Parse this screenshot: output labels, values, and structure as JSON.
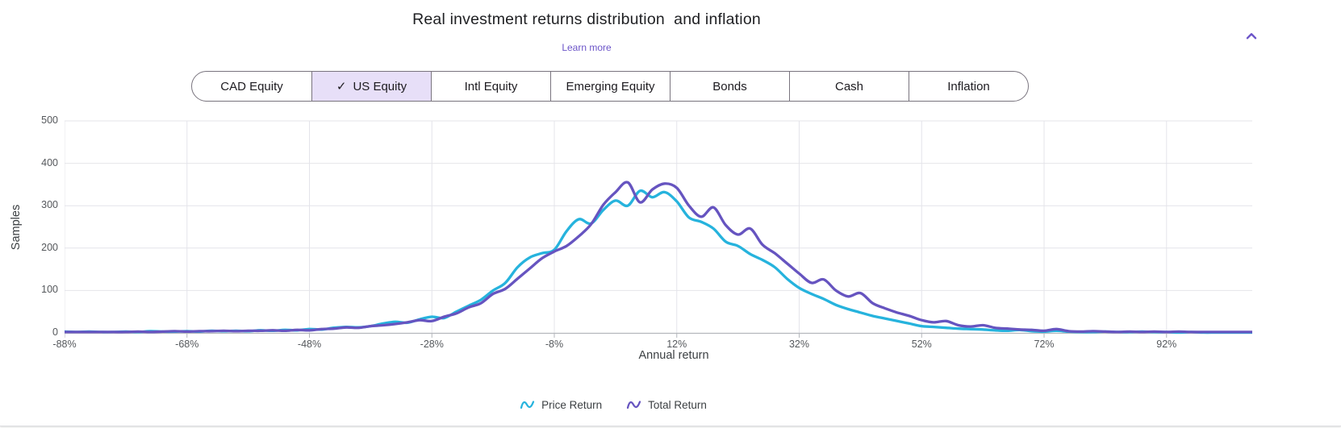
{
  "header": {
    "title": "Real investment returns distribution  and inflation",
    "learn_more": "Learn more"
  },
  "icons": {
    "collapse": "chevron-up-icon",
    "selected_check": "check-icon",
    "legend_marker": "wave-icon"
  },
  "colors": {
    "accent_purple": "#6b54c8",
    "selected_segment_bg": "#e7dff8",
    "segment_border": "#79747e",
    "grid": "#e4e4ea",
    "axis": "#b4b7bc",
    "price_return": "#26b3dd",
    "total_return": "#6654c0"
  },
  "segmented_control": {
    "check_glyph": "✓",
    "options": [
      {
        "label": "CAD Equity",
        "selected": false
      },
      {
        "label": "US Equity",
        "selected": true
      },
      {
        "label": "Intl Equity",
        "selected": false
      },
      {
        "label": "Emerging Equity",
        "selected": false
      },
      {
        "label": "Bonds",
        "selected": false
      },
      {
        "label": "Cash",
        "selected": false
      },
      {
        "label": "Inflation",
        "selected": false
      }
    ]
  },
  "chart_data": {
    "type": "line",
    "title": "Real investment returns distribution  and inflation",
    "xlabel": "Annual return",
    "ylabel": "Samples",
    "x_unit": "%",
    "xlim": [
      -88,
      106
    ],
    "ylim": [
      0,
      500
    ],
    "grid": true,
    "legend_position": "bottom",
    "x_ticks": [
      -88,
      -68,
      -48,
      -28,
      -8,
      12,
      32,
      52,
      72,
      92
    ],
    "x_tick_labels": [
      "-88%",
      "-68%",
      "-48%",
      "-28%",
      "-8%",
      "12%",
      "32%",
      "52%",
      "72%",
      "92%"
    ],
    "y_ticks": [
      0,
      100,
      200,
      300,
      400,
      500
    ],
    "x": [
      -88,
      -86,
      -84,
      -82,
      -80,
      -78,
      -76,
      -74,
      -72,
      -70,
      -68,
      -66,
      -64,
      -62,
      -60,
      -58,
      -56,
      -54,
      -52,
      -50,
      -48,
      -46,
      -44,
      -42,
      -40,
      -38,
      -36,
      -34,
      -32,
      -30,
      -28,
      -26,
      -24,
      -22,
      -20,
      -18,
      -16,
      -14,
      -12,
      -10,
      -8,
      -6,
      -4,
      -2,
      0,
      2,
      4,
      6,
      8,
      10,
      12,
      14,
      16,
      18,
      20,
      22,
      24,
      26,
      28,
      30,
      32,
      34,
      36,
      38,
      40,
      42,
      44,
      46,
      48,
      50,
      52,
      54,
      56,
      58,
      60,
      62,
      64,
      66,
      68,
      70,
      72,
      74,
      76,
      78,
      80,
      82,
      84,
      86,
      88,
      90,
      92,
      94,
      96,
      98,
      100,
      102,
      104,
      106
    ],
    "series": [
      {
        "name": "Price Return",
        "color": "#26b3dd",
        "values": [
          3,
          2,
          3,
          2,
          2,
          3,
          2,
          4,
          3,
          3,
          4,
          3,
          5,
          4,
          5,
          4,
          6,
          5,
          7,
          6,
          9,
          8,
          12,
          14,
          13,
          16,
          22,
          26,
          24,
          32,
          38,
          35,
          50,
          64,
          78,
          100,
          118,
          155,
          178,
          188,
          196,
          240,
          268,
          258,
          290,
          312,
          300,
          335,
          320,
          332,
          310,
          272,
          262,
          246,
          215,
          205,
          186,
          172,
          155,
          128,
          106,
          92,
          80,
          66,
          56,
          48,
          40,
          34,
          28,
          22,
          16,
          14,
          12,
          10,
          9,
          8,
          6,
          5,
          7,
          4,
          3,
          5,
          3,
          2,
          2,
          3,
          2,
          2,
          3,
          2,
          2,
          1,
          2,
          1,
          1,
          1,
          1,
          1
        ]
      },
      {
        "name": "Total Return",
        "color": "#6654c0",
        "values": [
          2,
          2,
          2,
          2,
          2,
          2,
          3,
          2,
          3,
          4,
          3,
          4,
          4,
          5,
          4,
          5,
          5,
          6,
          5,
          7,
          6,
          9,
          10,
          13,
          12,
          16,
          18,
          21,
          25,
          30,
          28,
          38,
          46,
          60,
          70,
          92,
          104,
          128,
          152,
          176,
          192,
          205,
          228,
          256,
          302,
          332,
          355,
          308,
          338,
          352,
          342,
          300,
          274,
          296,
          254,
          232,
          246,
          208,
          188,
          164,
          140,
          118,
          126,
          100,
          86,
          94,
          70,
          58,
          48,
          40,
          30,
          25,
          28,
          18,
          15,
          18,
          12,
          10,
          8,
          7,
          5,
          9,
          4,
          3,
          4,
          3,
          2,
          3,
          2,
          3,
          2,
          3,
          2,
          2,
          2,
          2,
          2,
          2
        ]
      }
    ]
  }
}
